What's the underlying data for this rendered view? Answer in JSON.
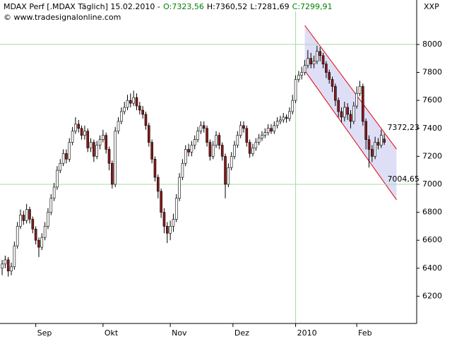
{
  "chart_data": {
    "type": "candlestick",
    "header": [
      {
        "text": "MDAX Perf [.MDAX  Täglich] 15.02.2010 -",
        "color": "#000000"
      },
      {
        "text": "O:7323,56",
        "color": "#008000"
      },
      {
        "text": "H:7360,52",
        "color": "#000000"
      },
      {
        "text": "L:7281,69",
        "color": "#000000"
      },
      {
        "text": "C:7299,91",
        "color": "#008000"
      }
    ],
    "copyright": "© www.tradesignalonline.com",
    "axis_name": "XXP",
    "up_color": "#ffffff",
    "down_color": "#8b1a1a",
    "open": [
      6400,
      6430,
      6460,
      6380,
      6410,
      6560,
      6700,
      6780,
      6740,
      6820,
      6750,
      6680,
      6600,
      6550,
      6620,
      6700,
      6800,
      6900,
      6980,
      7100,
      7150,
      7220,
      7180,
      7300,
      7380,
      7430,
      7400,
      7350,
      7380,
      7260,
      7300,
      7200,
      7280,
      7320,
      7350,
      7250,
      7150,
      7000,
      7380,
      7450,
      7520,
      7550,
      7600,
      7580,
      7620,
      7560,
      7530,
      7500,
      7420,
      7300,
      7180,
      7050,
      6950,
      6800,
      6700,
      6650,
      6700,
      6750,
      6900,
      7050,
      7150,
      7250,
      7230,
      7280,
      7320,
      7380,
      7420,
      7400,
      7300,
      7200,
      7280,
      7350,
      7280,
      7200,
      7000,
      7120,
      7200,
      7280,
      7350,
      7420,
      7400,
      7300,
      7220,
      7260,
      7300,
      7330,
      7350,
      7370,
      7400,
      7380,
      7420,
      7450,
      7460,
      7480,
      7470,
      7520,
      7600,
      7750,
      7780,
      7800,
      7850,
      7900,
      7860,
      7880,
      7950,
      7920,
      7860,
      7800,
      7750,
      7700,
      7600,
      7520,
      7480,
      7550,
      7500,
      7450,
      7560,
      7650,
      7700,
      7450,
      7320,
      7250,
      7200,
      7300,
      7280,
      7323.56
    ],
    "high": [
      6460,
      6490,
      6480,
      6440,
      6590,
      6730,
      6820,
      6810,
      6860,
      6840,
      6770,
      6700,
      6620,
      6650,
      6730,
      6830,
      6930,
      7010,
      7130,
      7180,
      7250,
      7250,
      7330,
      7410,
      7480,
      7460,
      7420,
      7420,
      7400,
      7330,
      7320,
      7310,
      7350,
      7390,
      7370,
      7270,
      7170,
      7410,
      7480,
      7550,
      7590,
      7640,
      7650,
      7670,
      7650,
      7590,
      7560,
      7520,
      7440,
      7320,
      7200,
      7070,
      6970,
      6830,
      6730,
      6740,
      6790,
      6930,
      7080,
      7180,
      7280,
      7290,
      7310,
      7350,
      7410,
      7450,
      7450,
      7420,
      7320,
      7310,
      7380,
      7370,
      7300,
      7220,
      7150,
      7230,
      7310,
      7380,
      7450,
      7450,
      7420,
      7320,
      7290,
      7330,
      7360,
      7380,
      7400,
      7430,
      7430,
      7450,
      7480,
      7490,
      7510,
      7500,
      7550,
      7640,
      7780,
      7810,
      7840,
      7890,
      7960,
      7940,
      7920,
      7990,
      7980,
      7940,
      7880,
      7820,
      7770,
      7720,
      7620,
      7550,
      7590,
      7580,
      7530,
      7590,
      7700,
      7740,
      7720,
      7470,
      7350,
      7280,
      7340,
      7330,
      7390,
      7360.52
    ],
    "low": [
      6350,
      6400,
      6340,
      6350,
      6390,
      6540,
      6680,
      6710,
      6720,
      6720,
      6650,
      6570,
      6480,
      6530,
      6600,
      6680,
      6780,
      6880,
      6960,
      7080,
      7130,
      7150,
      7160,
      7280,
      7360,
      7370,
      7320,
      7320,
      7230,
      7230,
      7160,
      7180,
      7250,
      7300,
      7220,
      7100,
      6970,
      6980,
      7360,
      7430,
      7500,
      7530,
      7550,
      7560,
      7530,
      7500,
      7470,
      7390,
      7270,
      7150,
      7020,
      6900,
      6760,
      6650,
      6580,
      6600,
      6660,
      6730,
      6880,
      7030,
      7130,
      7200,
      7200,
      7250,
      7300,
      7360,
      7370,
      7270,
      7170,
      7180,
      7260,
      7250,
      7170,
      6900,
      6980,
      7100,
      7180,
      7260,
      7330,
      7370,
      7270,
      7190,
      7200,
      7240,
      7280,
      7310,
      7330,
      7350,
      7360,
      7360,
      7400,
      7430,
      7440,
      7440,
      7450,
      7500,
      7580,
      7730,
      7750,
      7780,
      7830,
      7830,
      7830,
      7860,
      7880,
      7830,
      7760,
      7720,
      7660,
      7560,
      7480,
      7440,
      7450,
      7460,
      7400,
      7430,
      7540,
      7630,
      7420,
      7250,
      7120,
      7160,
      7180,
      7250,
      7260,
      7281.69
    ],
    "close": [
      6430,
      6460,
      6380,
      6410,
      6560,
      6700,
      6780,
      6740,
      6820,
      6750,
      6680,
      6600,
      6550,
      6620,
      6700,
      6800,
      6900,
      6980,
      7100,
      7150,
      7220,
      7180,
      7300,
      7380,
      7430,
      7400,
      7350,
      7380,
      7260,
      7300,
      7200,
      7280,
      7320,
      7350,
      7250,
      7150,
      7000,
      7380,
      7450,
      7520,
      7550,
      7600,
      7580,
      7620,
      7560,
      7530,
      7500,
      7420,
      7300,
      7180,
      7050,
      6950,
      6800,
      6700,
      6650,
      6700,
      6750,
      6900,
      7050,
      7150,
      7250,
      7230,
      7280,
      7320,
      7380,
      7420,
      7400,
      7300,
      7200,
      7280,
      7350,
      7280,
      7200,
      7000,
      7120,
      7200,
      7280,
      7350,
      7420,
      7400,
      7300,
      7220,
      7260,
      7300,
      7330,
      7350,
      7370,
      7400,
      7380,
      7420,
      7450,
      7460,
      7480,
      7470,
      7520,
      7600,
      7750,
      7780,
      7800,
      7850,
      7900,
      7860,
      7880,
      7950,
      7920,
      7860,
      7800,
      7750,
      7700,
      7600,
      7520,
      7480,
      7550,
      7500,
      7450,
      7560,
      7650,
      7700,
      7450,
      7320,
      7250,
      7200,
      7300,
      7280,
      7350,
      7299.91
    ],
    "xlim": [
      -0.7,
      135.6
    ],
    "xticks": [
      {
        "value": 11,
        "label": "Sep"
      },
      {
        "value": 33,
        "label": "Okt"
      },
      {
        "value": 55,
        "label": "Nov"
      },
      {
        "value": 75.5,
        "label": "Dez"
      },
      {
        "value": 96,
        "label": "2010"
      },
      {
        "value": 116,
        "label": "Feb"
      }
    ],
    "ylim": [
      6005,
      8237
    ],
    "yticks": [
      6200,
      6400,
      6600,
      6800,
      7000,
      7200,
      7400,
      7600,
      7800,
      8000
    ],
    "hlines": [
      8000,
      7000
    ],
    "vlines": [
      96
    ],
    "grid_color": "#a8d8a8",
    "channel": {
      "color": "#e00000",
      "fill": "#d8d8f6",
      "x": [
        99,
        129
      ],
      "upper": [
        8136,
        7252
      ],
      "lower": [
        7813,
        6889
      ]
    },
    "annotations": [
      {
        "value": 7372.23,
        "label": "7372,23"
      },
      {
        "value": 7004.65,
        "label": "7004,65"
      }
    ]
  }
}
